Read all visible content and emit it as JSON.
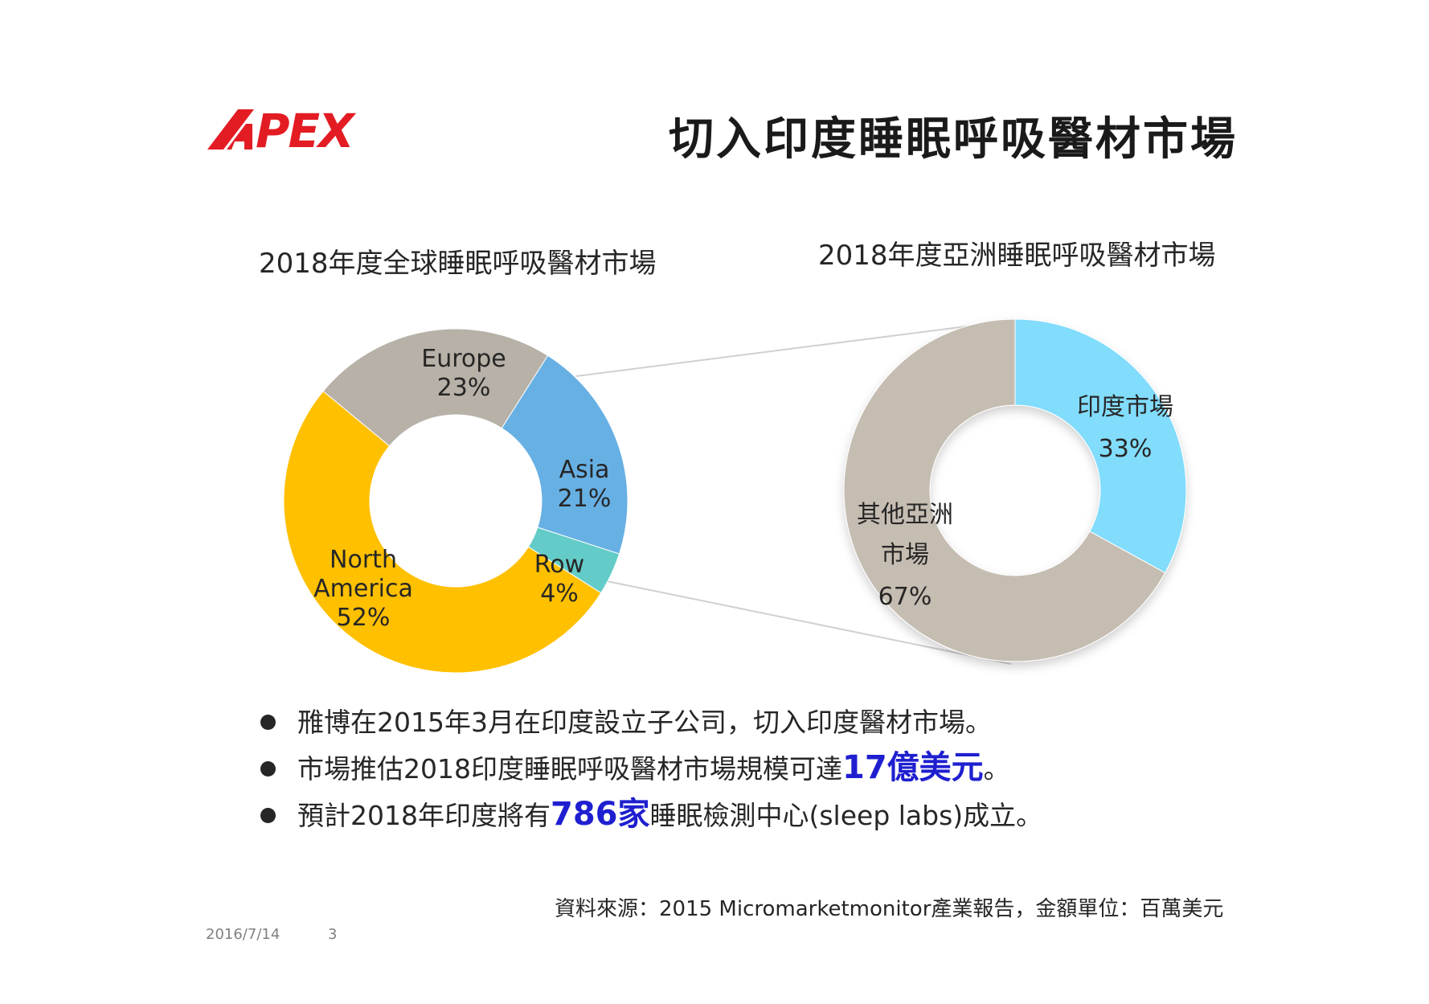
{
  "logo": {
    "text": "APEX",
    "color": "#e31c24"
  },
  "title": "切入印度睡眠呼吸醫材市場",
  "chart_data": [
    {
      "type": "pie",
      "title": "2018年度全球睡眠呼吸醫材市場",
      "donut": true,
      "slices": [
        {
          "name": "Europe",
          "value": 23,
          "label": "23%",
          "color": "#b7b1a8"
        },
        {
          "name": "Asia",
          "value": 21,
          "label": "21%",
          "color": "#67b0e4"
        },
        {
          "name": "Row",
          "value": 4,
          "label": "4%",
          "color": "#64ccc8"
        },
        {
          "name": "North America",
          "value": 52,
          "label": "52%",
          "color": "#ffc000"
        }
      ]
    },
    {
      "type": "pie",
      "title": "2018年度亞洲睡眠呼吸醫材市場",
      "donut": true,
      "slices": [
        {
          "name": "印度市場",
          "value": 33,
          "label": "33%",
          "color": "#82dcfc"
        },
        {
          "name": "其他亞洲市場",
          "value": 67,
          "label": "67%",
          "color": "#c6bdb2"
        }
      ]
    }
  ],
  "bullets": [
    {
      "pre": "雃博在2015年3月在印度設立子公司，切入印度醫材市場。",
      "hl": "",
      "post": ""
    },
    {
      "pre": "市場推估2018印度睡眠呼吸醫材市場規模可達",
      "hl": "17億美元",
      "post": "。"
    },
    {
      "pre": "預計2018年印度將有",
      "hl": "786家",
      "post": "睡眠檢測中心(sleep labs)成立。"
    }
  ],
  "source": "資料來源：2015 Micromarketmonitor產業報告，金額單位：百萬美元",
  "footer": {
    "date": "2016/7/14",
    "page": "3"
  }
}
